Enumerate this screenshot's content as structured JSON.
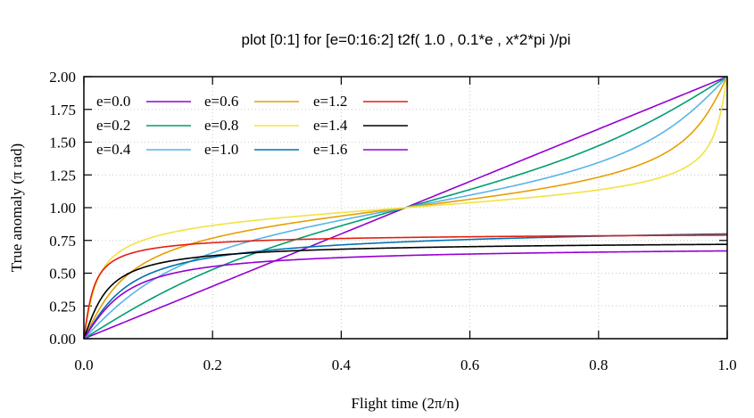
{
  "chart_data": {
    "type": "line",
    "title": "plot  [0:1]  for [e=0:16:2] t2f( 1.0 , 0.1*e , x*2*pi )/pi",
    "xlabel": "Flight time (2π/n)",
    "ylabel": "True anomaly (π rad)",
    "xlim": [
      0,
      1
    ],
    "ylim": [
      0,
      2
    ],
    "xticks": [
      "0.0",
      "0.2",
      "0.4",
      "0.6",
      "0.8",
      "1.0"
    ],
    "xtick_values": [
      0,
      0.2,
      0.4,
      0.6,
      0.8,
      1.0
    ],
    "yticks": [
      "0.00",
      "0.25",
      "0.50",
      "0.75",
      "1.00",
      "1.25",
      "1.50",
      "1.75",
      "2.00"
    ],
    "ytick_values": [
      0,
      0.25,
      0.5,
      0.75,
      1.0,
      1.25,
      1.5,
      1.75,
      2.0
    ],
    "grid": true,
    "legend_position": "top-left",
    "series": [
      {
        "name": "e=0.0",
        "e": 0.0,
        "color": "#9400d3",
        "end_value": 2.0
      },
      {
        "name": "e=0.2",
        "e": 0.2,
        "color": "#009e73",
        "end_value": 2.0
      },
      {
        "name": "e=0.4",
        "e": 0.4,
        "color": "#56b4e9",
        "end_value": 2.0
      },
      {
        "name": "e=0.6",
        "e": 0.6,
        "color": "#e69f00",
        "end_value": 2.0
      },
      {
        "name": "e=0.8",
        "e": 0.8,
        "color": "#f0e442",
        "end_value": 2.0
      },
      {
        "name": "e=1.0",
        "e": 1.0,
        "color": "#0072b2",
        "end_value": 0.8
      },
      {
        "name": "e=1.2",
        "e": 1.2,
        "color": "#e51e10",
        "end_value": 0.79
      },
      {
        "name": "e=1.4",
        "e": 1.4,
        "color": "#000000",
        "end_value": 0.72
      },
      {
        "name": "e=1.6",
        "e": 1.6,
        "color": "#9400d3",
        "end_value": 0.67
      }
    ]
  }
}
